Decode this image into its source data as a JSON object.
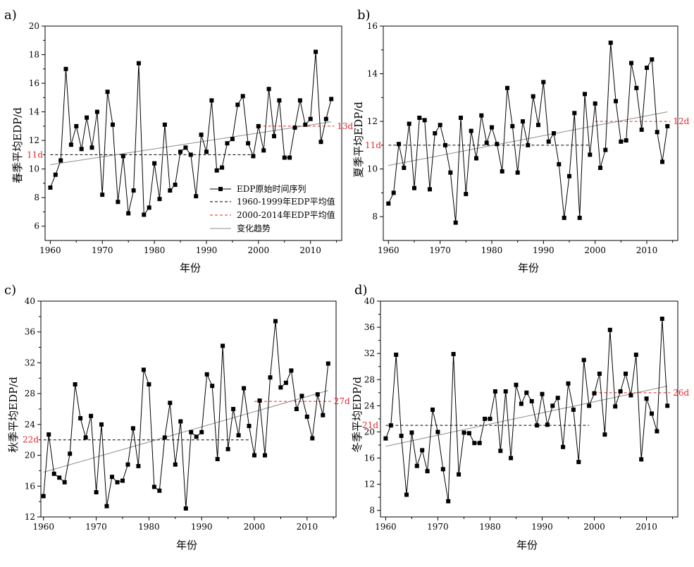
{
  "colors": {
    "series": "#000000",
    "avg_early": "#000000",
    "avg_late": "#e8262d",
    "avg_label": "#e8262d",
    "trend": "#8c8c8c"
  },
  "legend": {
    "items": [
      "EDP原始时间序列",
      "1960-1999年EDP平均值",
      "2000-2014年EDP平均值",
      "变化趋势"
    ]
  },
  "chart_data": [
    {
      "panel": "a)",
      "type": "line",
      "xlabel": "年份",
      "ylabel": "春季平均EDP/d",
      "xlim": [
        1959,
        2016
      ],
      "ylim": [
        5,
        20
      ],
      "xticks": [
        1960,
        1970,
        1980,
        1990,
        2000,
        2010
      ],
      "yticks": [
        6,
        8,
        10,
        12,
        14,
        16,
        18,
        20
      ],
      "x": [
        1960,
        1961,
        1962,
        1963,
        1964,
        1965,
        1966,
        1967,
        1968,
        1969,
        1970,
        1971,
        1972,
        1973,
        1974,
        1975,
        1976,
        1977,
        1978,
        1979,
        1980,
        1981,
        1982,
        1983,
        1984,
        1985,
        1986,
        1987,
        1988,
        1989,
        1990,
        1991,
        1992,
        1993,
        1994,
        1995,
        1996,
        1997,
        1998,
        1999,
        2000,
        2001,
        2002,
        2003,
        2004,
        2005,
        2006,
        2007,
        2008,
        2009,
        2010,
        2011,
        2012,
        2013,
        2014
      ],
      "values": [
        8.7,
        9.6,
        10.6,
        17.0,
        11.7,
        13.0,
        11.4,
        13.6,
        11.5,
        14.0,
        8.2,
        15.4,
        13.1,
        7.7,
        10.9,
        6.9,
        8.5,
        17.4,
        6.8,
        7.3,
        10.4,
        7.9,
        13.1,
        8.5,
        8.9,
        11.2,
        11.5,
        11.0,
        8.1,
        12.4,
        11.2,
        14.8,
        9.9,
        10.1,
        11.8,
        12.1,
        14.5,
        15.1,
        11.8,
        10.9,
        13.0,
        11.3,
        15.6,
        12.3,
        14.8,
        10.8,
        10.8,
        12.9,
        14.8,
        13.1,
        13.5,
        18.2,
        11.9,
        13.5,
        14.9
      ],
      "avg_early": {
        "value": 11,
        "from": 1960,
        "to": 1999,
        "label": "11d"
      },
      "avg_late": {
        "value": 13,
        "from": 2000,
        "to": 2014,
        "label": "13d"
      },
      "trend": {
        "from": [
          1960,
          10.3
        ],
        "to": [
          2014,
          13.3
        ]
      },
      "legend_location": "lower-center"
    },
    {
      "panel": "b)",
      "type": "line",
      "xlabel": "年份",
      "ylabel": "夏季平均EDP/d",
      "xlim": [
        1959,
        2016
      ],
      "ylim": [
        7,
        16
      ],
      "xticks": [
        1960,
        1970,
        1980,
        1990,
        2000,
        2010
      ],
      "yticks": [
        8,
        10,
        12,
        14,
        16
      ],
      "x": [
        1960,
        1961,
        1962,
        1963,
        1964,
        1965,
        1966,
        1967,
        1968,
        1969,
        1970,
        1971,
        1972,
        1973,
        1974,
        1975,
        1976,
        1977,
        1978,
        1979,
        1980,
        1981,
        1982,
        1983,
        1984,
        1985,
        1986,
        1987,
        1988,
        1989,
        1990,
        1991,
        1992,
        1993,
        1994,
        1995,
        1996,
        1997,
        1998,
        1999,
        2000,
        2001,
        2002,
        2003,
        2004,
        2005,
        2006,
        2007,
        2008,
        2009,
        2010,
        2011,
        2012,
        2013,
        2014
      ],
      "values": [
        8.55,
        9.0,
        11.05,
        10.05,
        11.9,
        9.2,
        12.15,
        12.05,
        9.15,
        11.5,
        11.85,
        11.0,
        9.85,
        7.75,
        12.15,
        8.95,
        11.6,
        10.45,
        12.25,
        11.1,
        11.75,
        11.05,
        9.9,
        13.4,
        11.8,
        9.85,
        12.0,
        11.0,
        13.05,
        11.85,
        13.65,
        11.15,
        11.5,
        10.2,
        7.95,
        9.7,
        12.35,
        7.95,
        13.15,
        10.6,
        12.75,
        10.05,
        10.8,
        15.3,
        12.85,
        11.15,
        11.2,
        14.45,
        13.4,
        11.65,
        14.25,
        14.6,
        11.55,
        10.3,
        11.8
      ],
      "avg_early": {
        "value": 11,
        "from": 1960,
        "to": 1999,
        "label": "11d"
      },
      "avg_late": {
        "value": 12,
        "from": 2000,
        "to": 2014,
        "label": "12d"
      },
      "trend": {
        "from": [
          1960,
          10.15
        ],
        "to": [
          2014,
          12.4
        ]
      }
    },
    {
      "panel": "c)",
      "type": "line",
      "xlabel": "年份",
      "ylabel": "秋季平均EDP/d",
      "xlim": [
        1959.5,
        2015.5
      ],
      "ylim": [
        12,
        40
      ],
      "xticks": [
        1960,
        1970,
        1980,
        1990,
        2000,
        2010
      ],
      "yticks": [
        12,
        16,
        20,
        24,
        28,
        32,
        36,
        40
      ],
      "x": [
        1960,
        1961,
        1962,
        1963,
        1964,
        1965,
        1966,
        1967,
        1968,
        1969,
        1970,
        1971,
        1972,
        1973,
        1974,
        1975,
        1976,
        1977,
        1978,
        1979,
        1980,
        1981,
        1982,
        1983,
        1984,
        1985,
        1986,
        1987,
        1988,
        1989,
        1990,
        1991,
        1992,
        1993,
        1994,
        1995,
        1996,
        1997,
        1998,
        1999,
        2000,
        2001,
        2002,
        2003,
        2004,
        2005,
        2006,
        2007,
        2008,
        2009,
        2010,
        2011,
        2012,
        2013,
        2014
      ],
      "values": [
        14.7,
        22.7,
        17.6,
        17.1,
        16.5,
        20.2,
        29.2,
        24.8,
        22.3,
        25.1,
        15.2,
        24.0,
        13.4,
        17.2,
        16.5,
        16.7,
        18.8,
        23.5,
        18.6,
        31.1,
        29.2,
        15.9,
        15.4,
        22.3,
        26.8,
        18.8,
        24.4,
        13.1,
        23.0,
        22.4,
        23.0,
        30.5,
        29.0,
        19.5,
        34.2,
        20.8,
        26.0,
        22.6,
        28.7,
        23.8,
        20.0,
        27.1,
        20.0,
        30.1,
        37.4,
        28.8,
        29.4,
        31.0,
        26.0,
        27.7,
        25.0,
        22.2,
        27.9,
        25.2,
        31.9
      ],
      "avg_early": {
        "value": 22,
        "from": 1960,
        "to": 1999,
        "label": "22d"
      },
      "avg_late": {
        "value": 27,
        "from": 2000,
        "to": 2014,
        "label": "27d"
      },
      "trend": {
        "from": [
          1960,
          17.8
        ],
        "to": [
          2014,
          28.4
        ]
      }
    },
    {
      "panel": "d)",
      "type": "line",
      "xlabel": "年份",
      "ylabel": "冬季平均EDP/d",
      "xlim": [
        1959,
        2016
      ],
      "ylim": [
        7,
        40
      ],
      "xticks": [
        1960,
        1970,
        1980,
        1990,
        2000,
        2010
      ],
      "yticks": [
        8,
        12,
        16,
        20,
        24,
        28,
        32,
        36,
        40
      ],
      "x": [
        1960,
        1961,
        1962,
        1963,
        1964,
        1965,
        1966,
        1967,
        1968,
        1969,
        1970,
        1971,
        1972,
        1973,
        1974,
        1975,
        1976,
        1977,
        1978,
        1979,
        1980,
        1981,
        1982,
        1983,
        1984,
        1985,
        1986,
        1987,
        1988,
        1989,
        1990,
        1991,
        1992,
        1993,
        1994,
        1995,
        1996,
        1997,
        1998,
        1999,
        2000,
        2001,
        2002,
        2003,
        2004,
        2005,
        2006,
        2007,
        2008,
        2009,
        2010,
        2011,
        2012,
        2013,
        2014
      ],
      "values": [
        19.0,
        21.0,
        31.8,
        19.4,
        10.4,
        19.9,
        14.8,
        17.2,
        14.0,
        23.4,
        20.0,
        14.3,
        9.4,
        31.9,
        13.5,
        19.9,
        19.8,
        18.3,
        18.3,
        22.0,
        22.0,
        26.2,
        17.1,
        26.2,
        16.0,
        27.2,
        24.3,
        26.0,
        24.7,
        21.0,
        25.8,
        21.1,
        24.0,
        25.2,
        17.7,
        27.4,
        23.4,
        15.4,
        31.0,
        24.0,
        25.9,
        28.9,
        19.6,
        35.6,
        23.9,
        26.2,
        28.9,
        25.6,
        31.8,
        15.8,
        25.1,
        22.8,
        20.1,
        37.3,
        24.0
      ],
      "avg_early": {
        "value": 21,
        "from": 1960,
        "to": 1999,
        "label": "21d"
      },
      "avg_late": {
        "value": 26,
        "from": 2000,
        "to": 2014,
        "label": "26d"
      },
      "trend": {
        "from": [
          1960,
          17.8
        ],
        "to": [
          2014,
          27.0
        ]
      }
    }
  ]
}
